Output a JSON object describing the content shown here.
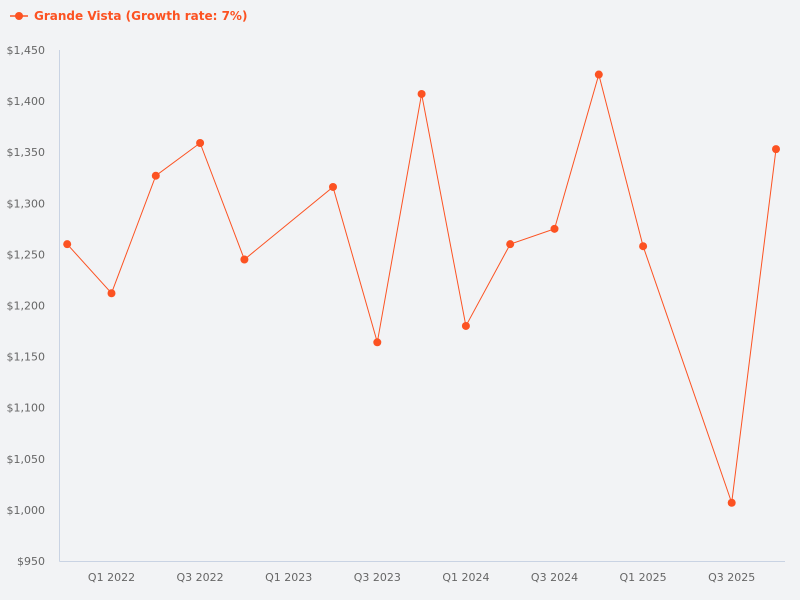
{
  "chart_data": {
    "type": "line",
    "title": "",
    "xlabel": "",
    "ylabel": "",
    "legend_position": "top-left",
    "grid": false,
    "x_tick_labels": [
      "Q1 2022",
      "Q3 2022",
      "Q1 2023",
      "Q3 2023",
      "Q1 2024",
      "Q3 2024",
      "Q1 2025",
      "Q3 2025"
    ],
    "y_tick_labels": [
      "$950",
      "$1,000",
      "$1,050",
      "$1,100",
      "$1,150",
      "$1,200",
      "$1,250",
      "$1,300",
      "$1,350",
      "$1,400",
      "$1,450"
    ],
    "ylim": [
      950,
      1450
    ],
    "series": [
      {
        "name": "Grande Vista (Growth rate: 7%)",
        "color": "#fc5222",
        "x": [
          "Q4 2021",
          "Q1 2022",
          "Q2 2022",
          "Q3 2022",
          "Q4 2022",
          "Q2 2023",
          "Q3 2023",
          "Q4 2023",
          "Q1 2024",
          "Q2 2024",
          "Q3 2024",
          "Q4 2024",
          "Q1 2025",
          "Q3 2025",
          "Q4 2025"
        ],
        "x_index": [
          -1,
          0,
          1,
          2,
          3,
          5,
          6,
          7,
          8,
          9,
          10,
          11,
          12,
          14,
          15
        ],
        "values": [
          1260,
          1212,
          1327,
          1359,
          1245,
          1316,
          1164,
          1407,
          1180,
          1260,
          1275,
          1426,
          1258,
          1007,
          1353
        ]
      }
    ]
  }
}
